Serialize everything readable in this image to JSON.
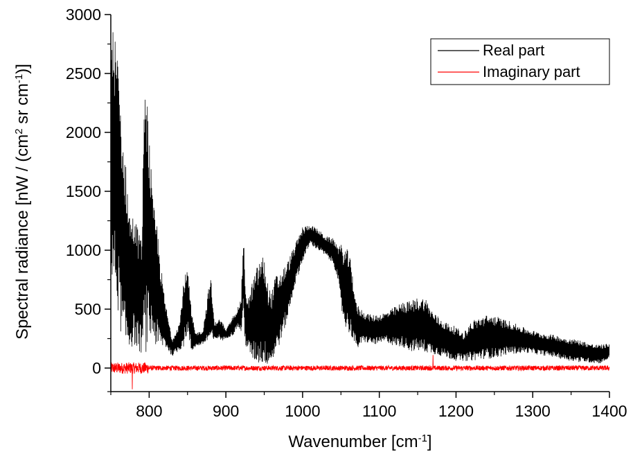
{
  "chart_data": {
    "type": "line",
    "title": "",
    "xlabel": {
      "main": "Wavenumber [cm",
      "sup": "-1",
      "close": "]"
    },
    "ylabel": {
      "p1": "Spectral radiance [nW / (cm",
      "sup1": "2",
      "p2": " sr cm",
      "sup2": "-1",
      "p3": ")]"
    },
    "xlim": [
      750,
      1400
    ],
    "ylim": [
      -200,
      3000
    ],
    "x_ticks": [
      800,
      900,
      1000,
      1100,
      1200,
      1300,
      1400
    ],
    "y_ticks": [
      0,
      500,
      1000,
      1500,
      2000,
      2500,
      3000
    ],
    "grid": false,
    "legend_position": "top-right",
    "series": [
      {
        "name": "Real part",
        "color": "#000000",
        "envelope_x": [
          750,
          755,
          760,
          765,
          770,
          775,
          780,
          785,
          790,
          795,
          800,
          805,
          810,
          815,
          820,
          830,
          840,
          845,
          850,
          855,
          860,
          870,
          880,
          885,
          890,
          895,
          900,
          910,
          915,
          920,
          923,
          925,
          930,
          935,
          940,
          945,
          950,
          955,
          960,
          965,
          970,
          975,
          980,
          990,
          1000,
          1010,
          1020,
          1030,
          1040,
          1045,
          1050,
          1055,
          1060,
          1065,
          1070,
          1080,
          1090,
          1100,
          1110,
          1120,
          1130,
          1140,
          1150,
          1160,
          1170,
          1180,
          1190,
          1200,
          1210,
          1220,
          1230,
          1240,
          1250,
          1260,
          1270,
          1280,
          1290,
          1300,
          1310,
          1320,
          1330,
          1340,
          1350,
          1360,
          1370,
          1380,
          1390,
          1400
        ],
        "envelope_max": [
          2900,
          2850,
          2600,
          2000,
          1700,
          1300,
          1300,
          1200,
          1100,
          2630,
          1980,
          1400,
          1250,
          900,
          600,
          250,
          400,
          750,
          850,
          500,
          300,
          320,
          800,
          380,
          420,
          400,
          320,
          450,
          500,
          600,
          1180,
          700,
          600,
          750,
          850,
          950,
          950,
          700,
          650,
          800,
          800,
          850,
          900,
          1050,
          1200,
          1220,
          1180,
          1120,
          1100,
          1060,
          1050,
          1020,
          1000,
          820,
          550,
          480,
          450,
          460,
          480,
          520,
          560,
          570,
          600,
          600,
          480,
          420,
          380,
          350,
          300,
          400,
          430,
          450,
          450,
          420,
          400,
          370,
          340,
          320,
          300,
          290,
          280,
          260,
          250,
          240,
          220,
          200,
          200,
          210
        ],
        "envelope_min": [
          620,
          650,
          450,
          200,
          150,
          150,
          200,
          150,
          120,
          120,
          200,
          250,
          150,
          150,
          180,
          100,
          150,
          180,
          300,
          120,
          180,
          200,
          220,
          230,
          250,
          230,
          250,
          280,
          350,
          300,
          450,
          200,
          120,
          60,
          40,
          30,
          20,
          30,
          40,
          120,
          200,
          300,
          400,
          700,
          900,
          1050,
          1000,
          950,
          880,
          780,
          500,
          350,
          300,
          250,
          150,
          220,
          200,
          200,
          220,
          180,
          180,
          140,
          140,
          130,
          120,
          100,
          80,
          60,
          60,
          60,
          70,
          80,
          80,
          100,
          120,
          120,
          130,
          120,
          110,
          100,
          90,
          70,
          60,
          50,
          50,
          40,
          40,
          80
        ]
      },
      {
        "name": "Imaginary part",
        "color": "#ff0000",
        "noise_amplitude": 30,
        "spikes": [
          {
            "x": 778,
            "y": -180
          },
          {
            "x": 1170,
            "y": 110
          }
        ]
      }
    ]
  }
}
